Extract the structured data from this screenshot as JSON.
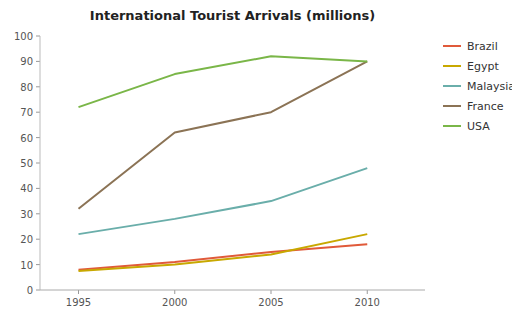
{
  "chart_data": {
    "type": "line",
    "title": "International Tourist Arrivals (millions)",
    "x": [
      1995,
      2000,
      2005,
      2010
    ],
    "series": [
      {
        "name": "Brazil",
        "color": "#e05a3a",
        "values": [
          8,
          11,
          15,
          18
        ]
      },
      {
        "name": "Egypt",
        "color": "#c8a800",
        "values": [
          7.5,
          10,
          14,
          22
        ]
      },
      {
        "name": "Malaysia",
        "color": "#6aaeaa",
        "values": [
          22,
          28,
          35,
          48
        ]
      },
      {
        "name": "France",
        "color": "#8b7355",
        "values": [
          32,
          62,
          70,
          90
        ]
      },
      {
        "name": "USA",
        "color": "#7ab648",
        "values": [
          72,
          85,
          92,
          90
        ]
      }
    ],
    "xlim": [
      1993,
      2013
    ],
    "xticks": [
      1995,
      2000,
      2005,
      2010
    ],
    "ylim": [
      0,
      100
    ],
    "yticks": [
      0,
      10,
      20,
      30,
      40,
      50,
      60,
      70,
      80,
      90,
      100
    ],
    "grid": false,
    "legend": "right"
  }
}
